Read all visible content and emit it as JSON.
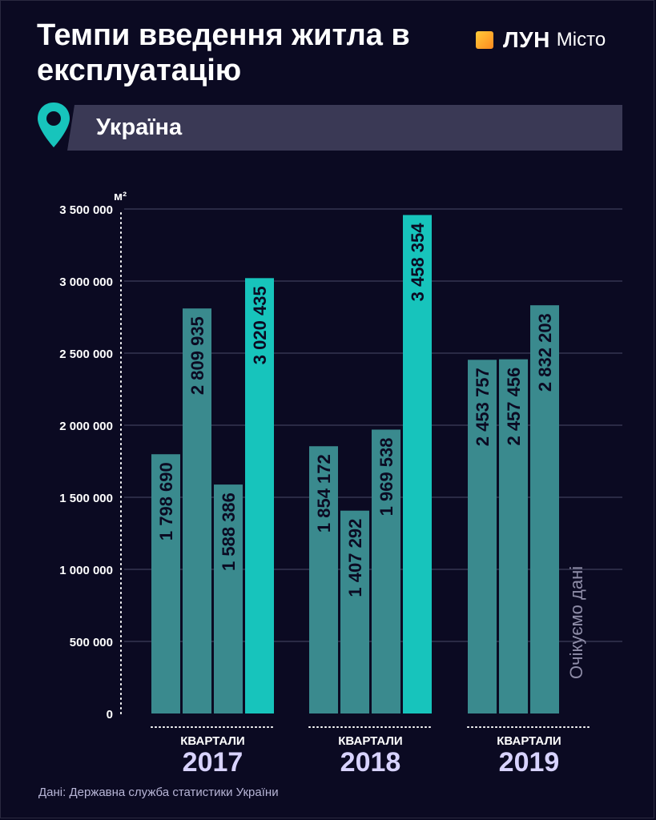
{
  "title": "Темпи введення житла в експлуатацію",
  "logo": {
    "brand": "ЛУН",
    "sub": "Місто"
  },
  "region": "Україна",
  "source": "Дані: Державна служба статистики України",
  "colors": {
    "background": "#0b0a22",
    "bar": "#3a8a8e",
    "bar_highlight": "#17c4bc",
    "gridline": "#4a4968",
    "tick_text": "#ffffff",
    "pending_text": "#8f8da8",
    "region_bar": "#3a3955",
    "pin": "#17c4bc",
    "logo_mark": "#ff9f1c"
  },
  "icons": {
    "pin": "location-pin-icon",
    "logo": "lun-logo-square-icon"
  },
  "chart_data": {
    "type": "bar",
    "title": "Темпи введення житла в експлуатацію",
    "ylabel": "м²",
    "ylim": [
      0,
      3500000
    ],
    "yticks": [
      0,
      500000,
      1000000,
      1500000,
      2000000,
      2500000,
      3000000,
      3500000
    ],
    "ytick_labels": [
      "0",
      "500 000",
      "1 000 000",
      "1 500 000",
      "2 000 000",
      "2 500 000",
      "3 000 000",
      "3 500 000"
    ],
    "grid": true,
    "group_label": "КВАРТАЛИ",
    "groups": [
      {
        "name": "2017",
        "values": [
          1798690,
          2809935,
          1588386,
          3020435
        ],
        "labels": [
          "1 798 690",
          "2 809 935",
          "1 588 386",
          "3 020 435"
        ],
        "highlight": [
          false,
          false,
          false,
          true
        ]
      },
      {
        "name": "2018",
        "values": [
          1854172,
          1407292,
          1969538,
          3458354
        ],
        "labels": [
          "1 854 172",
          "1 407 292",
          "1 969 538",
          "3 458 354"
        ],
        "highlight": [
          false,
          false,
          false,
          true
        ]
      },
      {
        "name": "2019",
        "values": [
          2453757,
          2457456,
          2832203,
          null
        ],
        "labels": [
          "2 453 757",
          "2 457 456",
          "2 832 203",
          null
        ],
        "highlight": [
          false,
          false,
          false,
          false
        ]
      }
    ],
    "pending_label": "Очікуємо дані"
  }
}
